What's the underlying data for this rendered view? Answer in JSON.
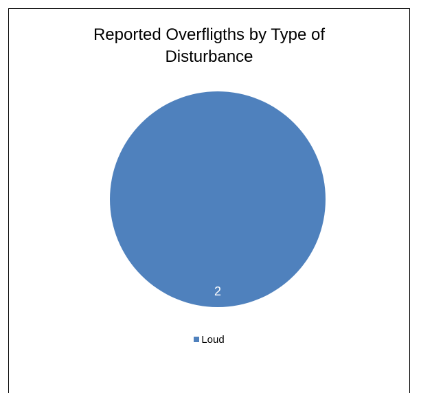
{
  "chart_data": {
    "type": "pie",
    "title_lines": [
      "Reported Overfligths by Type of",
      "Disturbance"
    ],
    "categories": [
      "Loud"
    ],
    "values": [
      2
    ],
    "data_labels": [
      "2"
    ],
    "colors": [
      "#4F81BD"
    ],
    "legend_position": "bottom"
  }
}
